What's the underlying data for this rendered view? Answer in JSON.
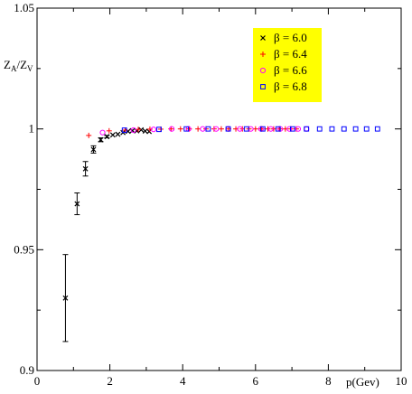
{
  "chart_data": {
    "type": "scatter",
    "title": "",
    "xlabel": "p(Gev)",
    "ylabel_main": "Z",
    "ylabel_sub1": "A",
    "ylabel_slash": "/Z",
    "ylabel_sub2": "V",
    "xlim": [
      0,
      10
    ],
    "ylim": [
      0.9,
      1.05
    ],
    "x_ticks": [
      0,
      2,
      4,
      6,
      8,
      10
    ],
    "y_ticks": [
      0.9,
      0.95,
      1,
      1.05
    ],
    "y_tick_labels": [
      "0.9",
      "0.95",
      "1",
      "1.05"
    ],
    "x_tick_labels": [
      "0",
      "2",
      "4",
      "6",
      "8",
      "10"
    ],
    "grid": false,
    "legend_position": "top-right",
    "legend_bg": "#ffff00",
    "series": [
      {
        "name": "β = 6.0",
        "marker": "x",
        "color": "#000000",
        "points": [
          {
            "x": 0.78,
            "y": 0.93,
            "err": 0.018
          },
          {
            "x": 1.1,
            "y": 0.969,
            "err": 0.0045
          },
          {
            "x": 1.33,
            "y": 0.9835,
            "err": 0.003
          },
          {
            "x": 1.55,
            "y": 0.9915,
            "err": 0.0015
          },
          {
            "x": 1.75,
            "y": 0.9955,
            "err": 0.0008
          },
          {
            "x": 1.92,
            "y": 0.9968,
            "err": 0.0005
          },
          {
            "x": 2.08,
            "y": 0.9975,
            "err": 0
          },
          {
            "x": 2.22,
            "y": 0.9978,
            "err": 0
          },
          {
            "x": 2.36,
            "y": 0.9985,
            "err": 0
          },
          {
            "x": 2.5,
            "y": 0.999,
            "err": 0
          },
          {
            "x": 2.62,
            "y": 0.9993,
            "err": 0
          },
          {
            "x": 2.74,
            "y": 0.9992,
            "err": 0
          },
          {
            "x": 2.86,
            "y": 0.9996,
            "err": 0
          },
          {
            "x": 2.97,
            "y": 0.9991,
            "err": 0
          },
          {
            "x": 3.08,
            "y": 0.9989,
            "err": 0
          }
        ]
      },
      {
        "name": "β = 6.4",
        "marker": "+",
        "color": "#ff0000",
        "points": [
          {
            "x": 1.42,
            "y": 0.9973,
            "err": 0
          },
          {
            "x": 1.98,
            "y": 0.9992,
            "err": 0
          },
          {
            "x": 2.42,
            "y": 0.9995,
            "err": 0
          },
          {
            "x": 2.78,
            "y": 0.9998,
            "err": 0
          },
          {
            "x": 3.1,
            "y": 0.9999,
            "err": 0
          },
          {
            "x": 3.4,
            "y": 0.9999,
            "err": 0
          },
          {
            "x": 3.68,
            "y": 1.0,
            "err": 0
          },
          {
            "x": 3.94,
            "y": 1.0,
            "err": 0
          },
          {
            "x": 4.18,
            "y": 1.0,
            "err": 0
          },
          {
            "x": 4.42,
            "y": 1.0,
            "err": 0
          },
          {
            "x": 4.64,
            "y": 1.0,
            "err": 0
          },
          {
            "x": 4.86,
            "y": 1.0,
            "err": 0
          },
          {
            "x": 5.06,
            "y": 1.0,
            "err": 0
          },
          {
            "x": 5.26,
            "y": 1.0,
            "err": 0
          },
          {
            "x": 5.46,
            "y": 1.0,
            "err": 0
          },
          {
            "x": 5.64,
            "y": 1.0,
            "err": 0
          },
          {
            "x": 5.82,
            "y": 1.0,
            "err": 0
          },
          {
            "x": 6.0,
            "y": 1.0,
            "err": 0
          },
          {
            "x": 6.17,
            "y": 1.0,
            "err": 0
          },
          {
            "x": 6.34,
            "y": 1.0,
            "err": 0
          },
          {
            "x": 6.5,
            "y": 1.0,
            "err": 0
          },
          {
            "x": 6.66,
            "y": 1.0,
            "err": 0
          },
          {
            "x": 6.82,
            "y": 1.0,
            "err": 0
          },
          {
            "x": 6.97,
            "y": 1.0,
            "err": 0
          },
          {
            "x": 7.12,
            "y": 1.0,
            "err": 0
          }
        ]
      },
      {
        "name": "β = 6.6",
        "marker": "circle",
        "color": "#ff00ff",
        "points": [
          {
            "x": 1.8,
            "y": 0.9985,
            "err": 0
          },
          {
            "x": 2.65,
            "y": 0.9995,
            "err": 0
          },
          {
            "x": 3.2,
            "y": 0.9998,
            "err": 0
          },
          {
            "x": 3.7,
            "y": 1.0,
            "err": 0
          },
          {
            "x": 4.16,
            "y": 1.0,
            "err": 0
          },
          {
            "x": 4.55,
            "y": 1.0,
            "err": 0
          },
          {
            "x": 4.92,
            "y": 1.0,
            "err": 0
          },
          {
            "x": 5.25,
            "y": 1.0,
            "err": 0
          },
          {
            "x": 5.57,
            "y": 1.0,
            "err": 0
          },
          {
            "x": 5.87,
            "y": 1.0,
            "err": 0
          },
          {
            "x": 6.15,
            "y": 1.0,
            "err": 0
          },
          {
            "x": 6.42,
            "y": 1.0,
            "err": 0
          },
          {
            "x": 6.68,
            "y": 1.0,
            "err": 0
          },
          {
            "x": 6.93,
            "y": 1.0,
            "err": 0
          },
          {
            "x": 7.17,
            "y": 1.0,
            "err": 0
          },
          {
            "x": 7.4,
            "y": 1.0,
            "err": 0
          }
        ]
      },
      {
        "name": "β = 6.8",
        "marker": "square",
        "color": "#0000ff",
        "points": [
          {
            "x": 2.4,
            "y": 0.9995,
            "err": 0
          },
          {
            "x": 3.35,
            "y": 0.9998,
            "err": 0
          },
          {
            "x": 4.1,
            "y": 1.0,
            "err": 0
          },
          {
            "x": 4.7,
            "y": 1.0,
            "err": 0
          },
          {
            "x": 5.25,
            "y": 1.0,
            "err": 0
          },
          {
            "x": 5.75,
            "y": 1.0,
            "err": 0
          },
          {
            "x": 6.2,
            "y": 1.0,
            "err": 0
          },
          {
            "x": 6.62,
            "y": 1.0,
            "err": 0
          },
          {
            "x": 7.02,
            "y": 1.0,
            "err": 0
          },
          {
            "x": 7.4,
            "y": 1.0,
            "err": 0
          },
          {
            "x": 7.76,
            "y": 1.0,
            "err": 0
          },
          {
            "x": 8.1,
            "y": 1.0,
            "err": 0
          },
          {
            "x": 8.43,
            "y": 1.0,
            "err": 0
          },
          {
            "x": 8.75,
            "y": 1.0,
            "err": 0
          },
          {
            "x": 9.05,
            "y": 1.0,
            "err": 0
          },
          {
            "x": 9.35,
            "y": 1.0,
            "err": 0
          }
        ]
      }
    ]
  }
}
